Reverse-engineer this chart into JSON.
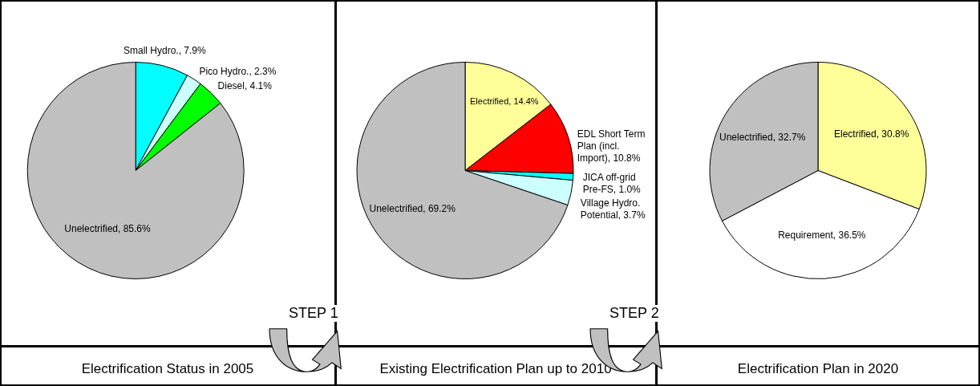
{
  "chart_data": [
    {
      "type": "pie",
      "title": "Electrification Status in 2005",
      "categories": [
        "Small Hydro.",
        "Pico Hydro.",
        "Diesel",
        "Unelectrified"
      ],
      "values": [
        7.9,
        2.3,
        4.1,
        85.6
      ],
      "colors": [
        "#00ffff",
        "#ccffff",
        "#00ff00",
        "#c0c0c0"
      ],
      "value_labels": [
        "7.9%",
        "2.3%",
        "4.1%",
        "85.6%"
      ],
      "annotations": [
        "STEP 1"
      ]
    },
    {
      "type": "pie",
      "title": "Existing Electrification Plan up to 2010",
      "categories": [
        "Electrified",
        "EDL Short Term Plan (incl. Import)",
        "JICA off-grid Pre-FS",
        "Village Hydro. Potential",
        "Unelectrified"
      ],
      "values": [
        14.4,
        10.8,
        1.0,
        3.7,
        69.2
      ],
      "colors": [
        "#ffff99",
        "#ff0000",
        "#00ffff",
        "#ccffff",
        "#c0c0c0"
      ],
      "value_labels": [
        "14.4%",
        "10.8%",
        "1.0%",
        "3.7%",
        "69.2%"
      ],
      "annotations": [
        "STEP 2"
      ]
    },
    {
      "type": "pie",
      "title": "Electrification Plan in 2020",
      "categories": [
        "Electrified",
        "Requirement",
        "Unelectrified"
      ],
      "values": [
        30.8,
        36.5,
        32.7
      ],
      "colors": [
        "#ffff99",
        "#ffffff",
        "#c0c0c0"
      ],
      "value_labels": [
        "30.8%",
        "36.5%",
        "32.7%"
      ]
    }
  ]
}
